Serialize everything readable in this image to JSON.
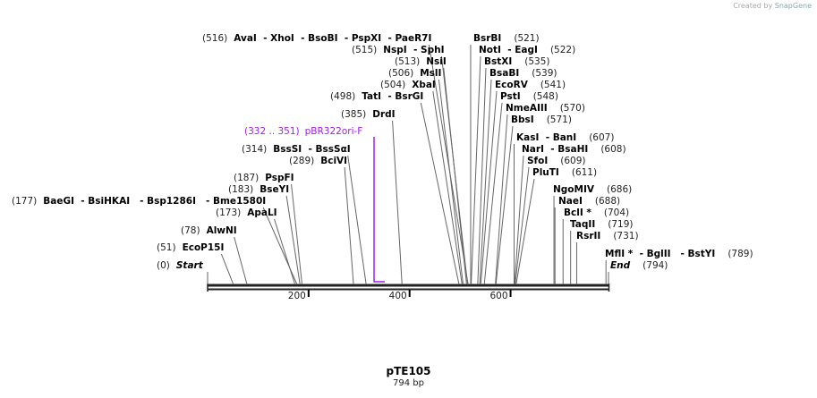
{
  "credit": {
    "prefix": "Created by",
    "brand": "SnapGene"
  },
  "map": {
    "name": "pTE105",
    "length_label": "794 bp",
    "length": 794
  },
  "ticks": [
    {
      "pos": 200,
      "label": "200"
    },
    {
      "pos": 400,
      "label": "400"
    },
    {
      "pos": 600,
      "label": "600"
    }
  ],
  "primer": {
    "range": "(332 .. 351)",
    "name": "pBR322ori-F",
    "start": 332,
    "end": 351,
    "color": "#a020f0"
  },
  "sites": [
    {
      "num": "(516)",
      "names": "AvaI  - XhoI  - BsoBI  - PspXI  - PaeR7I",
      "pos": 516
    },
    {
      "num": "(515)",
      "names": "NspI  - SphI",
      "pos": 515
    },
    {
      "num": "(513)",
      "names": "NsiI",
      "pos": 513
    },
    {
      "num": "(506)",
      "names": "MslI",
      "pos": 506
    },
    {
      "num": "(504)",
      "names": "XbaI",
      "pos": 504
    },
    {
      "num": "(498)",
      "names": "TatI  - BsrGI",
      "pos": 498
    },
    {
      "num": "(385)",
      "names": "DrdI",
      "pos": 385
    },
    {
      "num": "(314)",
      "names": "BssSI  - BssSαI",
      "pos": 314
    },
    {
      "num": "(289)",
      "names": "BciVI",
      "pos": 289
    },
    {
      "num": "(187)",
      "names": "PspFI",
      "pos": 187
    },
    {
      "num": "(183)",
      "names": "BseYI",
      "pos": 183
    },
    {
      "num": "(177)",
      "names": "BaeGI  - BsiHKAI   - Bsp1286I   - Bme1580I",
      "pos": 177
    },
    {
      "num": "(173)",
      "names": "ApaLI",
      "pos": 173
    },
    {
      "num": "(78)",
      "names": "AlwNI",
      "pos": 78
    },
    {
      "num": "(51)",
      "names": "EcoP15I",
      "pos": 51
    },
    {
      "num": "(0)",
      "names": "Start",
      "pos": 0
    },
    {
      "num": "(521)",
      "names": "BsrBI",
      "pos": 521
    },
    {
      "num": "(522)",
      "names": "NotI  - EagI",
      "pos": 522
    },
    {
      "num": "(535)",
      "names": "BstXI",
      "pos": 535
    },
    {
      "num": "(539)",
      "names": "BsaBI",
      "pos": 539
    },
    {
      "num": "(541)",
      "names": "EcoRV",
      "pos": 541
    },
    {
      "num": "(548)",
      "names": "PstI",
      "pos": 548
    },
    {
      "num": "(570)",
      "names": "NmeAIII",
      "pos": 570
    },
    {
      "num": "(571)",
      "names": "BbsI",
      "pos": 571
    },
    {
      "num": "(607)",
      "names": "KasI  - BanI",
      "pos": 607
    },
    {
      "num": "(608)",
      "names": "NarI  - BsaHI",
      "pos": 608
    },
    {
      "num": "(609)",
      "names": "SfoI",
      "pos": 609
    },
    {
      "num": "(611)",
      "names": "PluTI",
      "pos": 611
    },
    {
      "num": "(686)",
      "names": "NgoMIV",
      "pos": 686
    },
    {
      "num": "(688)",
      "names": "NaeI",
      "pos": 688
    },
    {
      "num": "(704)",
      "names": "BclI *",
      "pos": 704
    },
    {
      "num": "(719)",
      "names": "TaqII",
      "pos": 719
    },
    {
      "num": "(731)",
      "names": "RsrII",
      "pos": 731
    },
    {
      "num": "(789)",
      "names": "MflI *  - BglII   - BstYI",
      "pos": 789
    },
    {
      "num": "(794)",
      "names": "End",
      "pos": 794
    }
  ]
}
